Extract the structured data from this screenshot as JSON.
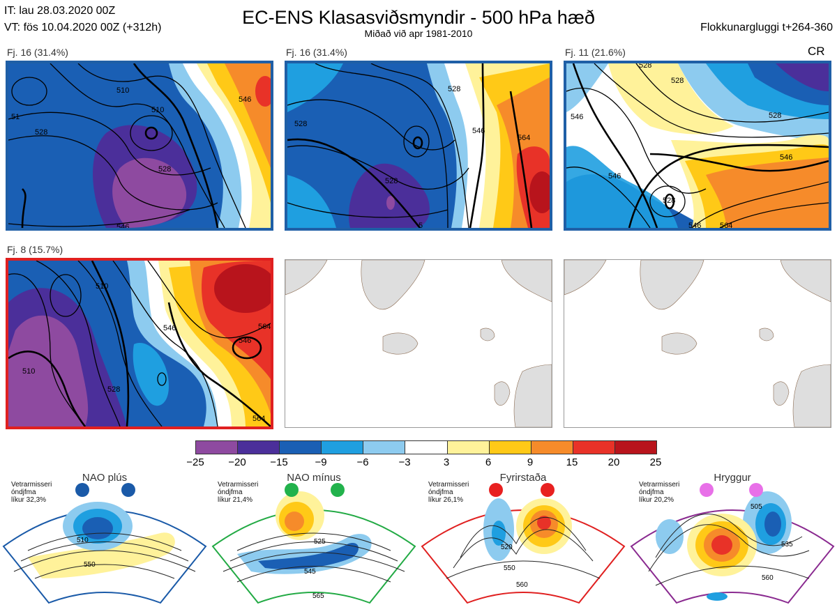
{
  "header": {
    "it_line": "IT: lau 28.03.2020 00Z",
    "vt_line": "VT: fös 10.04.2020 00Z  (+312h)",
    "title": "EC-ENS Klasasviðsmyndir - 500 hPa hæð",
    "subtitle": "Miðað við apr 1981-2010",
    "window": "Flokkunargluggi t+264-360",
    "cr": "CR"
  },
  "panels": [
    {
      "label": "Fj. 16 (31.4%)",
      "border": "#1f5fa6",
      "contours": [
        "510",
        "510",
        "528",
        "528",
        "546",
        "546",
        "51"
      ]
    },
    {
      "label": "Fj. 16 (31.4%)",
      "border": "#1f5fa6",
      "contours": [
        "528",
        "528",
        "528",
        "546",
        "564",
        "5"
      ]
    },
    {
      "label": "Fj. 11 (21.6%)",
      "border": "#1f5fa6",
      "contours": [
        "546",
        "528",
        "528",
        "546",
        "546",
        "528",
        "546",
        "564",
        "528"
      ]
    },
    {
      "label": "Fj. 8 (15.7%)",
      "border": "#e02020",
      "contours": [
        "510",
        "528",
        "510",
        "546",
        "564",
        "546",
        "564"
      ]
    }
  ],
  "colorbar": {
    "colors": [
      "#8e4aa0",
      "#4b2f9a",
      "#1a5fb4",
      "#1f9fe0",
      "#8dcbef",
      "#ffffff",
      "#fff29a",
      "#ffc917",
      "#f68b2a",
      "#e83228",
      "#b8141c"
    ],
    "ticks": [
      "−25",
      "−20",
      "−15",
      "−9",
      "−6",
      "−3",
      "3",
      "6",
      "9",
      "15",
      "20",
      "25"
    ]
  },
  "regimes": [
    {
      "name": "NAO plús",
      "small1": "Vetrarmisseri",
      "small2": "óndjfma",
      "small3": "líkur 32,3%",
      "dot_color": "#1a5aa8",
      "frame_color": "#1a5aa8",
      "labels": [
        "510",
        "550"
      ]
    },
    {
      "name": "NAO mínus",
      "small1": "Vetrarmisseri",
      "small2": "óndjfma",
      "small3": "líkur 21,4%",
      "dot_color": "#22b24c",
      "frame_color": "#22aa44",
      "labels": [
        "525",
        "545",
        "565"
      ]
    },
    {
      "name": "Fyrirstaða",
      "small1": "Vetrarmisseri",
      "small2": "óndjfma",
      "small3": "líkur 26,1%",
      "dot_color": "#e82020",
      "frame_color": "#e02020",
      "labels": [
        "520",
        "550",
        "560"
      ]
    },
    {
      "name": "Hryggur",
      "small1": "Vetrarmisseri",
      "small2": "óndjfma",
      "small3": "líkur 20,2%",
      "dot_color": "#e870e8",
      "frame_color": "#8a2a90",
      "labels": [
        "505",
        "535",
        "560"
      ]
    }
  ]
}
